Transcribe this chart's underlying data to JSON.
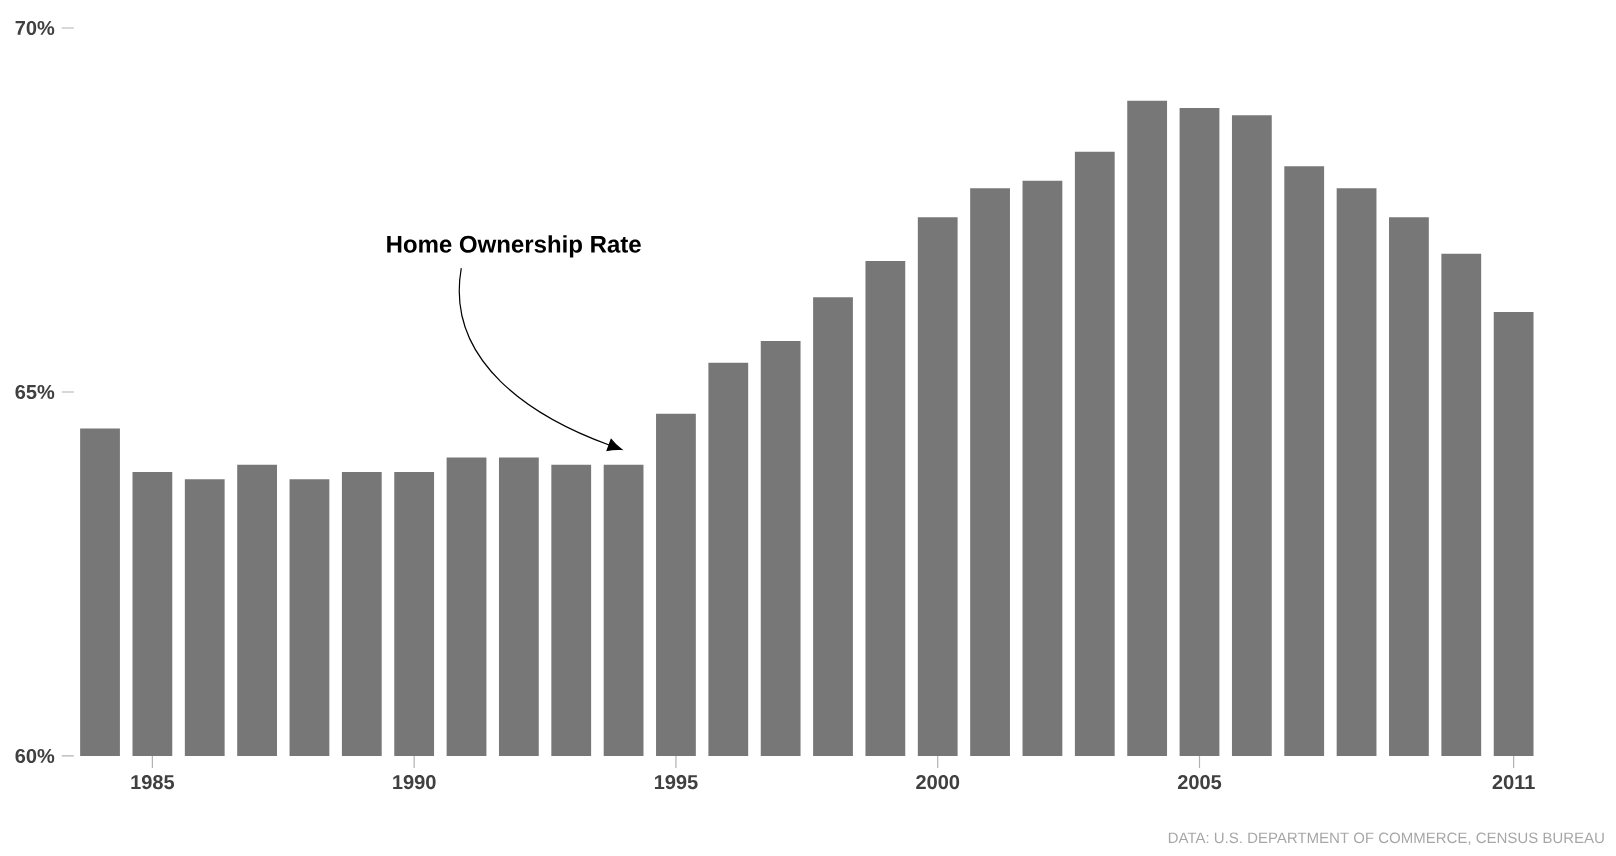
{
  "chart_data": {
    "type": "bar",
    "categories": [
      null,
      "1985",
      null,
      null,
      null,
      null,
      "1990",
      null,
      null,
      null,
      null,
      "1995",
      null,
      null,
      null,
      null,
      "2000",
      null,
      null,
      null,
      null,
      "2005",
      null,
      null,
      null,
      null,
      null,
      "2011"
    ],
    "values": [
      64.5,
      63.9,
      63.8,
      64.0,
      63.8,
      63.9,
      63.9,
      64.1,
      64.1,
      64.0,
      64.0,
      64.7,
      65.4,
      65.7,
      66.3,
      66.8,
      67.4,
      67.8,
      67.9,
      68.3,
      69.0,
      68.9,
      68.8,
      68.1,
      67.8,
      67.4,
      66.9,
      66.1
    ],
    "color": "#777777",
    "ylim": [
      60,
      70
    ],
    "yticks": [
      {
        "value": 60,
        "label": "60%"
      },
      {
        "value": 65,
        "label": "65%"
      },
      {
        "value": 70,
        "label": "70%"
      }
    ],
    "annotations": [
      "Home Ownership Rate",
      "DATA: U.S. DEPARTMENT OF COMMERCE, CENSUS BUREAU"
    ]
  }
}
